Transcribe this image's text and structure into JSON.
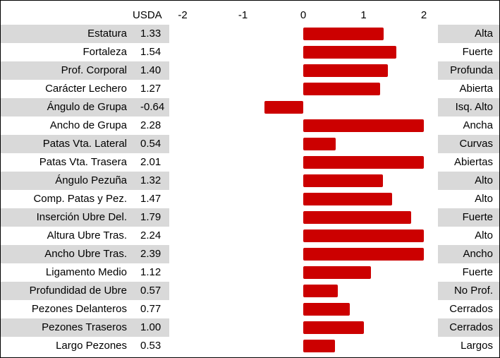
{
  "chart_data": {
    "type": "bar",
    "orientation": "horizontal",
    "value_header": "USDA",
    "x_ticks": [
      "-2",
      "-1",
      "0",
      "1",
      "2"
    ],
    "xlim": [
      -2,
      2
    ],
    "bar_color": "#cc0000",
    "stripe_color": "#d9d9d9",
    "rows": [
      {
        "trait": "Estatura",
        "value": 1.33,
        "value_label": "1.33",
        "descriptor": "Alta"
      },
      {
        "trait": "Fortaleza",
        "value": 1.54,
        "value_label": "1.54",
        "descriptor": "Fuerte"
      },
      {
        "trait": "Prof. Corporal",
        "value": 1.4,
        "value_label": "1.40",
        "descriptor": "Profunda"
      },
      {
        "trait": "Carácter Lechero",
        "value": 1.27,
        "value_label": "1.27",
        "descriptor": "Abierta"
      },
      {
        "trait": "Ángulo de Grupa",
        "value": -0.64,
        "value_label": "-0.64",
        "descriptor": "Isq. Alto"
      },
      {
        "trait": "Ancho de Grupa",
        "value": 2.28,
        "value_label": "2.28",
        "descriptor": "Ancha"
      },
      {
        "trait": "Patas Vta. Lateral",
        "value": 0.54,
        "value_label": "0.54",
        "descriptor": "Curvas"
      },
      {
        "trait": "Patas Vta. Trasera",
        "value": 2.01,
        "value_label": "2.01",
        "descriptor": "Abiertas"
      },
      {
        "trait": "Ángulo Pezuña",
        "value": 1.32,
        "value_label": "1.32",
        "descriptor": "Alto"
      },
      {
        "trait": "Comp. Patas y Pez.",
        "value": 1.47,
        "value_label": "1.47",
        "descriptor": "Alto"
      },
      {
        "trait": "Inserción Ubre Del.",
        "value": 1.79,
        "value_label": "1.79",
        "descriptor": "Fuerte"
      },
      {
        "trait": "Altura Ubre Tras.",
        "value": 2.24,
        "value_label": "2.24",
        "descriptor": "Alto"
      },
      {
        "trait": "Ancho Ubre Tras.",
        "value": 2.39,
        "value_label": "2.39",
        "descriptor": "Ancho"
      },
      {
        "trait": "Ligamento Medio",
        "value": 1.12,
        "value_label": "1.12",
        "descriptor": "Fuerte"
      },
      {
        "trait": "Profundidad de Ubre",
        "value": 0.57,
        "value_label": "0.57",
        "descriptor": "No Prof."
      },
      {
        "trait": "Pezones Delanteros",
        "value": 0.77,
        "value_label": "0.77",
        "descriptor": "Cerrados"
      },
      {
        "trait": "Pezones Traseros",
        "value": 1.0,
        "value_label": "1.00",
        "descriptor": "Cerrados"
      },
      {
        "trait": "Largo Pezones",
        "value": 0.53,
        "value_label": "0.53",
        "descriptor": "Largos"
      }
    ]
  }
}
